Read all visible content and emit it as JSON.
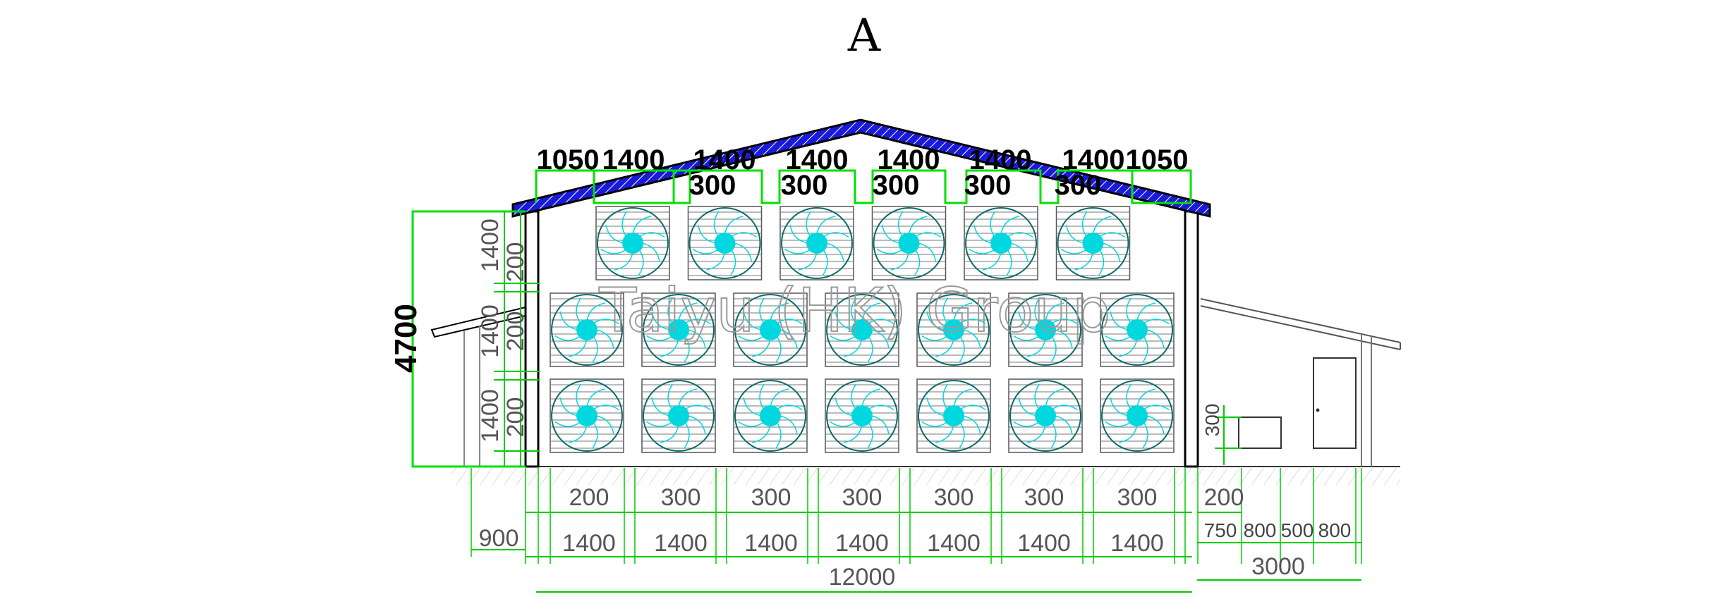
{
  "title": "A",
  "watermark": "Taiyu (HK) Group",
  "top_dimensions": {
    "segments": [
      "1050",
      "1400",
      "1400",
      "1400",
      "1400",
      "1400",
      "1400",
      "1050"
    ],
    "gaps": [
      "300",
      "300",
      "300",
      "300",
      "300"
    ]
  },
  "left_dimensions": {
    "overall_height": "4700",
    "fan_heights": [
      "1400",
      "1400",
      "1400"
    ],
    "fan_gaps": [
      "200",
      "200",
      "200"
    ]
  },
  "right_dimensions": {
    "box_height": "300"
  },
  "bottom_dimensions": {
    "row1": [
      "200",
      "300",
      "300",
      "300",
      "300",
      "300",
      "300",
      "200"
    ],
    "row2_fans": [
      "1400",
      "1400",
      "1400",
      "1400",
      "1400",
      "1400",
      "1400"
    ],
    "left_annex": "900",
    "right_annex_parts": [
      "750",
      "800",
      "500",
      "800"
    ],
    "total_width": "12000",
    "right_annex_total": "3000"
  },
  "colors": {
    "roof": "#1a1adc",
    "dimension_lines": "#00e000",
    "fan_blades": "#00d8e0",
    "fan_outline": "#0a6a6a",
    "outline": "#000000"
  },
  "fans": {
    "upper_row_count": 6,
    "lower_rows": 2,
    "lower_row_count": 7
  }
}
